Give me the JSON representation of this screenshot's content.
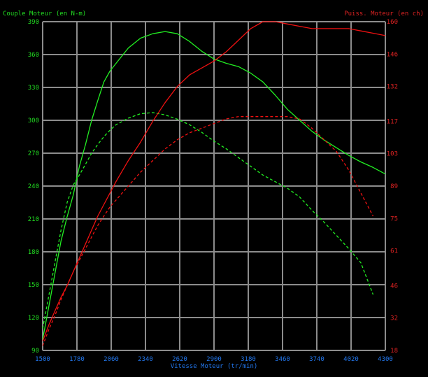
{
  "colors": {
    "background": "#000000",
    "grid": "#8c8c8c",
    "left_axis": "#22dd22",
    "right_axis": "#dd2222",
    "x_axis": "#2277ee",
    "torque": "#22ee22",
    "power": "#ee1111"
  },
  "chart_data": {
    "type": "line",
    "title": "",
    "left_axis": {
      "label": "Couple Moteur (en N-m)",
      "ylim": [
        90,
        390
      ],
      "ticks": [
        90,
        120,
        150,
        180,
        210,
        240,
        270,
        300,
        330,
        360,
        390
      ]
    },
    "right_axis": {
      "label": "Puiss. Moteur (en ch)",
      "ylim": [
        18,
        160
      ],
      "ticks": [
        18,
        32,
        46,
        61,
        75,
        89,
        103,
        117,
        132,
        146,
        160
      ]
    },
    "x_axis": {
      "label": "Vitesse Moteur (tr/min)",
      "xlim": [
        1500,
        4300
      ],
      "ticks": [
        1500,
        1780,
        2060,
        2340,
        2620,
        2900,
        3180,
        3460,
        3740,
        4020,
        4300
      ]
    },
    "grid": true,
    "series": [
      {
        "axis": "left",
        "style": "solid",
        "color_key": "torque",
        "x": [
          1500,
          1550,
          1600,
          1650,
          1700,
          1750,
          1800,
          1850,
          1900,
          1950,
          2000,
          2050,
          2100,
          2200,
          2300,
          2400,
          2500,
          2600,
          2700,
          2800,
          2900,
          3000,
          3100,
          3200,
          3300,
          3400,
          3500,
          3600,
          3700,
          3800,
          3900,
          4000,
          4100,
          4200,
          4300
        ],
        "y": [
          100,
          130,
          160,
          190,
          212,
          232,
          258,
          278,
          300,
          318,
          335,
          345,
          352,
          366,
          375,
          379,
          381,
          379,
          372,
          363,
          356,
          352,
          349,
          343,
          335,
          323,
          310,
          300,
          290,
          282,
          275,
          268,
          262,
          257,
          251
        ]
      },
      {
        "axis": "left",
        "style": "dashed",
        "color_key": "torque",
        "x": [
          1500,
          1550,
          1600,
          1650,
          1700,
          1750,
          1800,
          1850,
          1900,
          1950,
          2000,
          2050,
          2100,
          2200,
          2300,
          2400,
          2500,
          2600,
          2700,
          2800,
          2900,
          3000,
          3100,
          3200,
          3300,
          3400,
          3500,
          3600,
          3700,
          3800,
          3900,
          4000,
          4100,
          4200
        ],
        "y": [
          110,
          140,
          170,
          200,
          225,
          241,
          250,
          260,
          270,
          278,
          285,
          291,
          296,
          302,
          306,
          307,
          305,
          301,
          296,
          289,
          281,
          274,
          266,
          258,
          250,
          244,
          238,
          230,
          218,
          207,
          195,
          183,
          170,
          141
        ]
      },
      {
        "axis": "right",
        "style": "solid",
        "color_key": "power",
        "x": [
          1500,
          1550,
          1600,
          1650,
          1700,
          1750,
          1800,
          1850,
          1900,
          1950,
          2000,
          2050,
          2100,
          2200,
          2300,
          2400,
          2500,
          2600,
          2700,
          2800,
          2900,
          3000,
          3100,
          3200,
          3300,
          3400,
          3500,
          3600,
          3700,
          3800,
          3900,
          4000,
          4100,
          4200,
          4300
        ],
        "y": [
          22,
          29,
          35,
          41,
          46,
          52,
          58,
          64,
          70,
          76,
          81,
          86,
          91,
          100,
          108,
          117,
          125,
          132,
          137,
          140,
          143,
          147,
          152,
          157,
          160,
          160,
          159,
          158,
          157,
          157,
          157,
          157,
          156,
          155,
          154
        ]
      },
      {
        "axis": "right",
        "style": "dashed",
        "color_key": "power",
        "x": [
          1500,
          1550,
          1600,
          1650,
          1700,
          1750,
          1800,
          1850,
          1900,
          1950,
          2000,
          2050,
          2100,
          2200,
          2300,
          2400,
          2500,
          2600,
          2700,
          2800,
          2900,
          3000,
          3100,
          3200,
          3300,
          3400,
          3500,
          3600,
          3700,
          3800,
          3900,
          4000,
          4100,
          4200
        ],
        "y": [
          20,
          27,
          33,
          40,
          46,
          52,
          57,
          62,
          67,
          72,
          76,
          80,
          83,
          89,
          95,
          100,
          105,
          109,
          112,
          114,
          116,
          118,
          119,
          119,
          119,
          119,
          119,
          118,
          114,
          109,
          104,
          96,
          86,
          76
        ]
      }
    ]
  }
}
